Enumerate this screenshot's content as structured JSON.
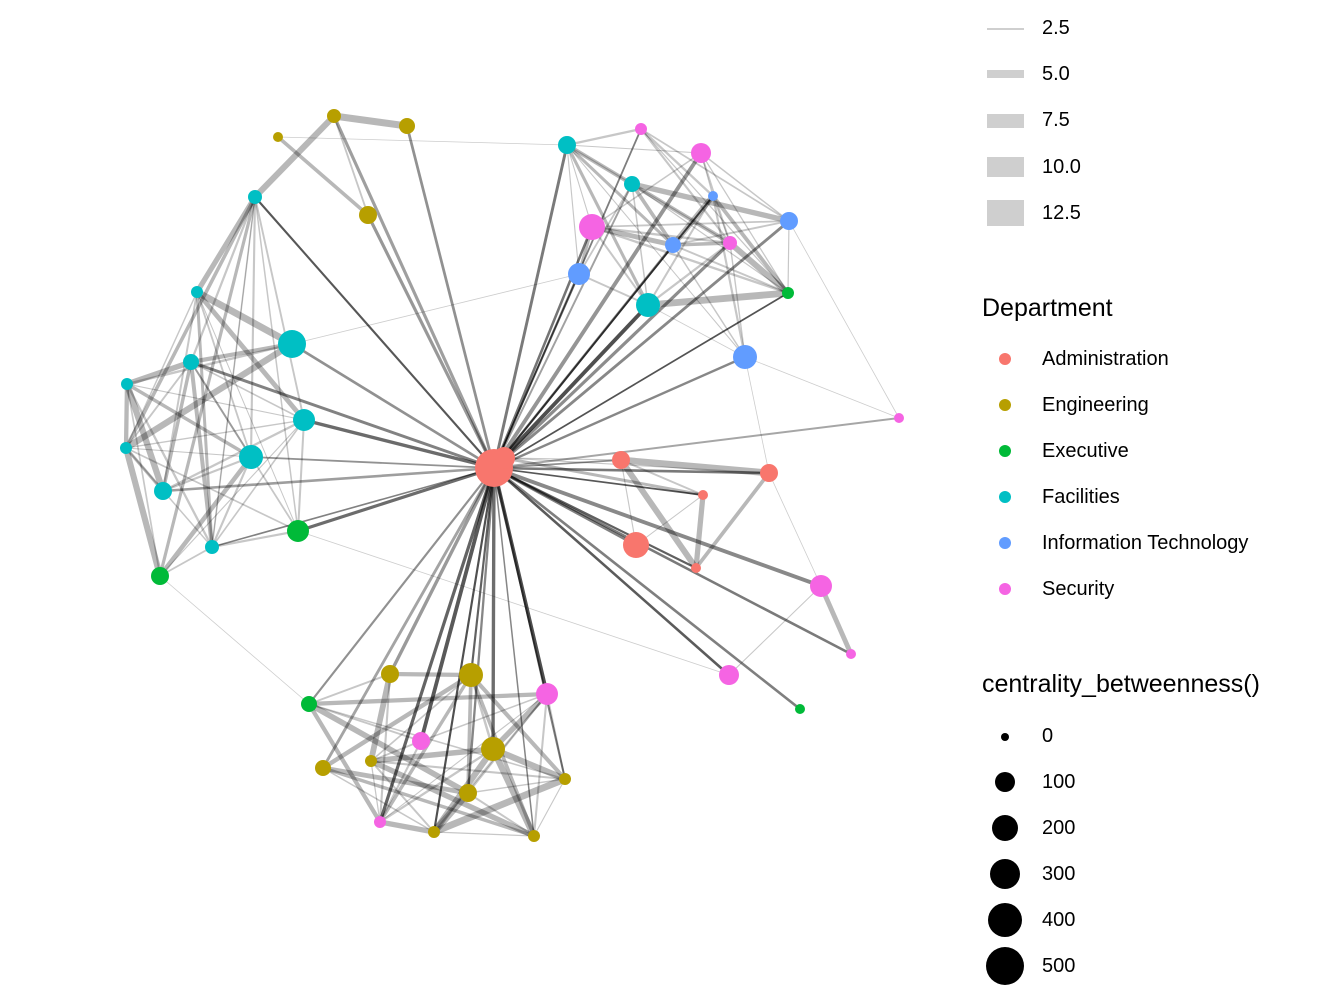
{
  "legend": {
    "width": {
      "items": [
        {
          "label": "2.5",
          "value": 2.5
        },
        {
          "label": "5.0",
          "value": 5.0
        },
        {
          "label": "7.5",
          "value": 7.5
        },
        {
          "label": "10.0",
          "value": 10.0
        },
        {
          "label": "12.5",
          "value": 12.5
        }
      ]
    },
    "department": {
      "title": "Department",
      "items": [
        {
          "label": "Administration",
          "color": "#F8766D"
        },
        {
          "label": "Engineering",
          "color": "#B79F00"
        },
        {
          "label": "Executive",
          "color": "#00BA38"
        },
        {
          "label": "Facilities",
          "color": "#00BFC4"
        },
        {
          "label": "Information Technology",
          "color": "#619CFF"
        },
        {
          "label": "Security",
          "color": "#F564E3"
        }
      ]
    },
    "size": {
      "title": "centrality_betweenness()",
      "items": [
        {
          "label": "0",
          "value": 0
        },
        {
          "label": "100",
          "value": 100
        },
        {
          "label": "200",
          "value": 200
        },
        {
          "label": "300",
          "value": 300
        },
        {
          "label": "400",
          "value": 400
        },
        {
          "label": "500",
          "value": 500
        }
      ]
    }
  }
}
